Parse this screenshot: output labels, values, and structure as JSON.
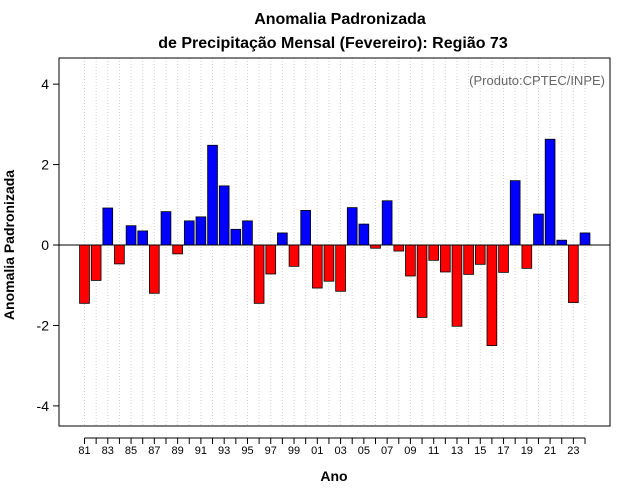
{
  "chart_data": {
    "type": "bar",
    "title_line1": "Anomalia Padronizada",
    "title_line2": "de Precipitação Mensal (Fevereiro): Região 73",
    "xlabel": "Ano",
    "ylabel": "Anomalia Padronizada",
    "source_note": "(Produto:CPTEC/INPE)",
    "ylim": [
      -4.5,
      4.65
    ],
    "yticks": [
      -4,
      -2,
      0,
      2,
      4
    ],
    "grid": true,
    "categories": [
      "81",
      "82",
      "83",
      "84",
      "85",
      "86",
      "87",
      "88",
      "89",
      "90",
      "91",
      "92",
      "93",
      "94",
      "95",
      "96",
      "97",
      "98",
      "99",
      "00",
      "01",
      "02",
      "03",
      "04",
      "05",
      "06",
      "07",
      "08",
      "09",
      "10",
      "11",
      "12",
      "13",
      "14",
      "15",
      "16",
      "17",
      "18",
      "19",
      "20",
      "21",
      "22",
      "23",
      "24"
    ],
    "xtick_labels": [
      "81",
      "83",
      "85",
      "87",
      "89",
      "91",
      "93",
      "95",
      "97",
      "99",
      "01",
      "03",
      "05",
      "07",
      "09",
      "11",
      "13",
      "15",
      "17",
      "19",
      "21",
      "23"
    ],
    "values": [
      -1.45,
      -0.88,
      0.92,
      -0.47,
      0.48,
      0.35,
      -1.2,
      0.83,
      -0.22,
      0.6,
      0.7,
      2.48,
      1.47,
      0.39,
      0.6,
      -1.45,
      -0.72,
      0.3,
      -0.53,
      0.86,
      -1.07,
      -0.9,
      -1.15,
      0.93,
      0.52,
      -0.08,
      1.1,
      -0.15,
      -0.77,
      -1.8,
      -0.38,
      -0.67,
      -2.02,
      -0.73,
      -0.48,
      -2.5,
      -0.68,
      1.6,
      -0.58,
      0.77,
      2.63,
      0.12,
      -1.43,
      0.3
    ],
    "positive_color": "#0000ff",
    "negative_color": "#ff0000"
  }
}
